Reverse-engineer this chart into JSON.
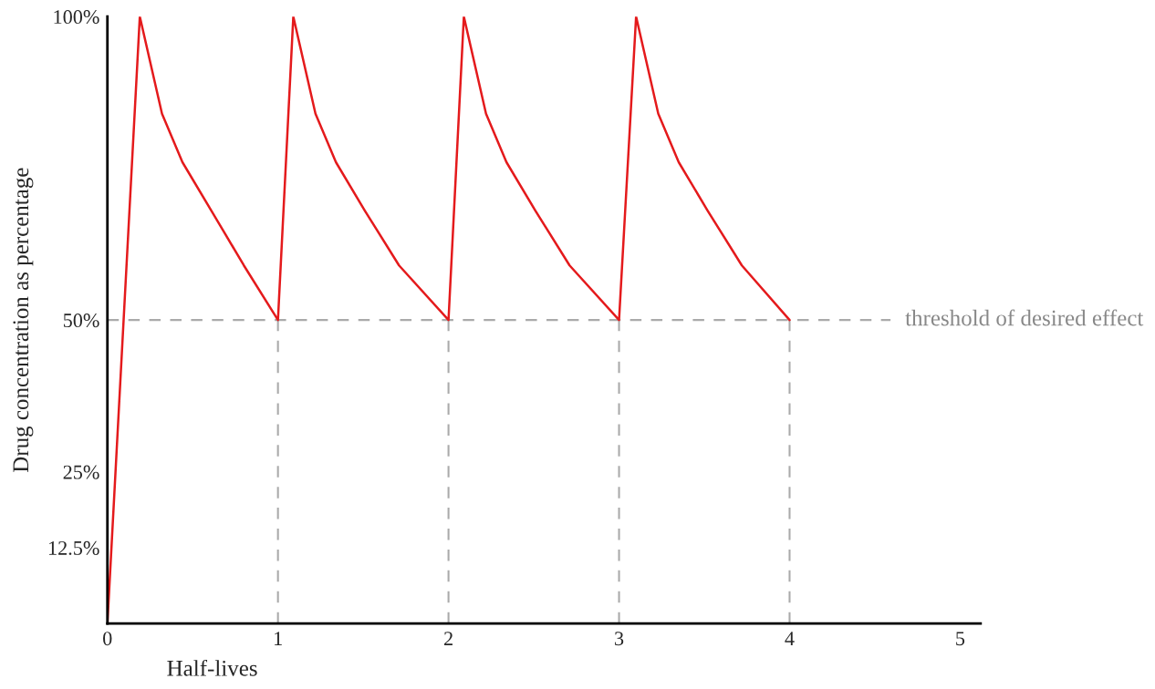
{
  "chart_data": {
    "type": "line",
    "xlabel": "Half-lives",
    "ylabel": "Drug concentration as percentage",
    "x": [
      0,
      0.19,
      0.32,
      0.44,
      0.61,
      0.8,
      1.0,
      1.09,
      1.22,
      1.34,
      1.51,
      1.71,
      2.0,
      2.09,
      2.22,
      2.34,
      2.51,
      2.71,
      3.0,
      3.1,
      3.23,
      3.35,
      3.52,
      3.72,
      4.0
    ],
    "series": [
      {
        "color": "#e41a1c",
        "values": [
          0,
          100,
          84,
          76,
          68,
          59,
          50,
          100,
          84,
          76,
          68,
          59,
          50,
          100,
          84,
          76,
          68,
          59,
          50,
          100,
          84,
          76,
          68,
          59,
          50
        ]
      }
    ],
    "xlim": [
      0,
      5.12
    ],
    "ylim": [
      0,
      100
    ],
    "xticks": [
      0,
      1,
      2,
      3,
      4,
      5
    ],
    "yticks": [
      {
        "value": 12.5,
        "label": "12.5%"
      },
      {
        "value": 25,
        "label": "25%"
      },
      {
        "value": 50,
        "label": "50%"
      },
      {
        "value": 100,
        "label": "100%"
      }
    ],
    "ref_lines": [
      {
        "axis": "y",
        "value": 50,
        "label": "threshold of desired effect",
        "color": "#aaaaaa",
        "line_style": "dashed"
      },
      {
        "axis": "x",
        "value": 1,
        "color": "#aaaaaa",
        "line_style": "dashed"
      },
      {
        "axis": "x",
        "value": 2,
        "color": "#aaaaaa",
        "line_style": "dashed"
      },
      {
        "axis": "x",
        "value": 3,
        "color": "#aaaaaa",
        "line_style": "dashed"
      },
      {
        "axis": "x",
        "value": 4,
        "color": "#aaaaaa",
        "line_style": "dashed"
      }
    ],
    "grid": false,
    "legend": false
  }
}
